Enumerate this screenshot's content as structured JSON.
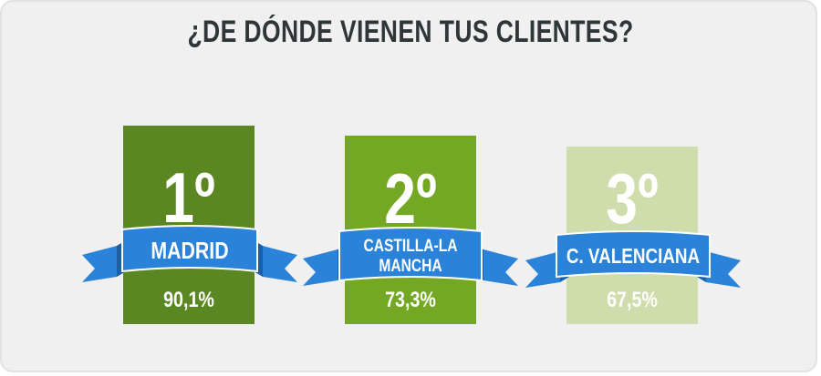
{
  "title": "¿DE DÓNDE VIENEN TUS CLIENTES?",
  "colors": {
    "first": "#5b8722",
    "second": "#73a724",
    "third": "#cfdcab",
    "ribbon": "#2a83d8",
    "ribbon_dark": "#1b5fa6"
  },
  "chart_data": {
    "type": "table",
    "title": "¿DE DÓNDE VIENEN TUS CLIENTES?",
    "rows": [
      {
        "rank": "1º",
        "region": "MADRID",
        "percent": "90,1%",
        "value": 90.1
      },
      {
        "rank": "2º",
        "region": "CASTILLA-LA MANCHA",
        "percent": "73,3%",
        "value": 73.3
      },
      {
        "rank": "3º",
        "region": "C. VALENCIANA",
        "percent": "67,5%",
        "value": 67.5
      }
    ]
  }
}
